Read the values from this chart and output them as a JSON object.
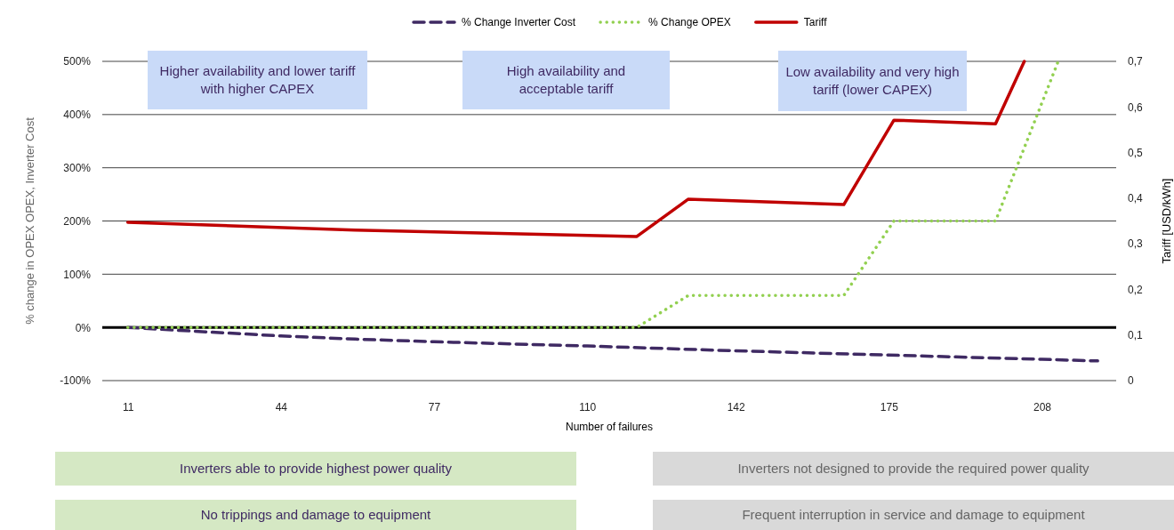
{
  "chart_data": {
    "type": "line",
    "xlabel": "Number of failures",
    "ylabel": "% change in OPEX OPEX, Inverter Cost",
    "y2label": "Tariff [USD/kWh]",
    "xlim": [
      5.5,
      224
    ],
    "xticks": [
      11,
      44,
      77,
      110,
      142,
      175,
      208
    ],
    "ylim": [
      -100,
      500
    ],
    "yticks": [
      {
        "value": -100,
        "label": "-100%"
      },
      {
        "value": 0,
        "label": "0%"
      },
      {
        "value": 100,
        "label": "100%"
      },
      {
        "value": 200,
        "label": "200%"
      },
      {
        "value": 300,
        "label": "300%"
      },
      {
        "value": 400,
        "label": "400%"
      },
      {
        "value": 500,
        "label": "500%"
      }
    ],
    "y2lim": [
      0,
      0.7
    ],
    "y2ticks": [
      {
        "value": 0,
        "label": "0"
      },
      {
        "value": 0.1,
        "label": "0,1"
      },
      {
        "value": 0.2,
        "label": "0,2"
      },
      {
        "value": 0.3,
        "label": "0,3"
      },
      {
        "value": 0.4,
        "label": "0,4"
      },
      {
        "value": 0.5,
        "label": "0,5"
      },
      {
        "value": 0.6,
        "label": "0,6"
      },
      {
        "value": 0.7,
        "label": "0,7"
      }
    ],
    "grid": "y",
    "legend": "top",
    "ref_lines": [
      {
        "axis": "y",
        "value": 0,
        "color": "#000000"
      }
    ],
    "series": [
      {
        "name": "% Change Inverter Cost",
        "color": "#3f2a63",
        "line_style": "dashed",
        "x": [
          11,
          27,
          44,
          60,
          77,
          110,
          142,
          175,
          208,
          220
        ],
        "values": [
          0,
          -8,
          -16,
          -22,
          -27,
          -35,
          -44,
          -52,
          -60,
          -63
        ]
      },
      {
        "name": "% Change OPEX",
        "color": "#92d050",
        "line_style": "dotted",
        "x": [
          11,
          120.7,
          131.8,
          165.3,
          176.1,
          198,
          211.5
        ],
        "values": [
          0,
          0,
          60,
          60,
          200,
          200,
          500
        ]
      },
      {
        "name": "Tariff",
        "color": "#c00000",
        "line_style": "solid",
        "axis": "y2",
        "x": [
          11,
          60,
          120.7,
          131.8,
          165.3,
          176.1,
          198,
          204.2
        ],
        "values": [
          0.347,
          0.33,
          0.316,
          0.398,
          0.386,
          0.571,
          0.563,
          0.7
        ]
      }
    ],
    "annotations": [
      "Higher availability and lower tariff with higher CAPEX",
      "High availability and acceptable tariff",
      "Low availability and very high tariff (lower CAPEX)",
      "Inverters able to provide highest power quality",
      "Inverters not designed to provide the required power quality",
      "No trippings and damage to equipment",
      "Frequent interruption in service and damage to equipment"
    ]
  }
}
